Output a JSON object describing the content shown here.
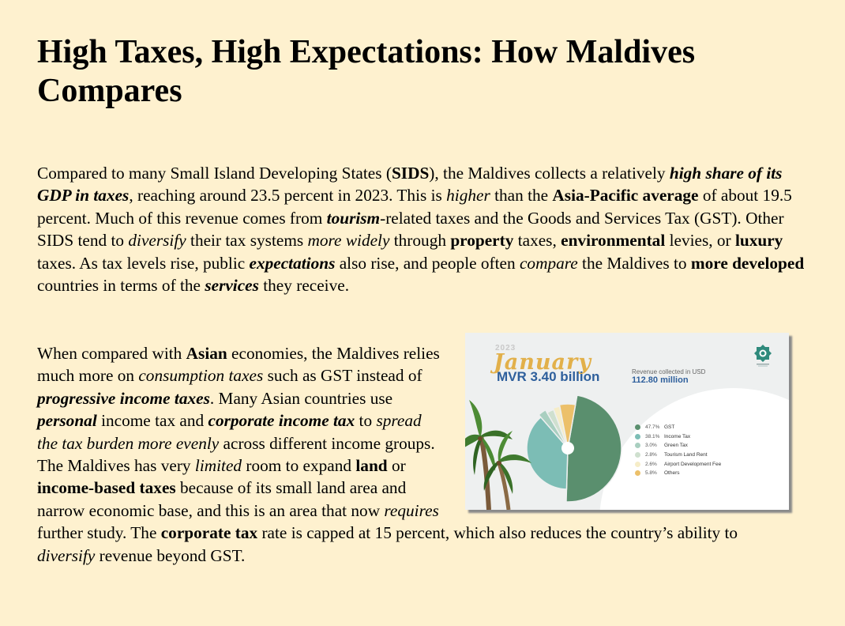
{
  "title": "High Taxes, High Expectations: How Maldives Compares",
  "p1": {
    "s1": "Compared to many Small Island Developing States (",
    "b1": "SIDS",
    "s2": "), the Maldives collects a relatively ",
    "bi1": "high share of its GDP in taxes",
    "s3": ", reaching around 23.5 percent in 2023. This is ",
    "i1": "higher",
    "s4": " than the ",
    "b2": "Asia-Pacific average",
    "s5": " of about 19.5 percent. Much of this revenue comes from ",
    "bi2": "tourism",
    "s6": "-related taxes and the Goods and Services Tax (GST). Other SIDS tend to ",
    "i2": "diversify",
    "s7": " their tax systems ",
    "i3": "more widely",
    "s8": " through ",
    "b3": "property",
    "s9": " taxes, ",
    "b4": "environmental",
    "s10": " levies, or ",
    "b5": "luxury",
    "s11": " taxes. As tax levels rise, public ",
    "bi3": "expectations",
    "s12": " also rise, and people often ",
    "i4": "compare",
    "s13": " the Maldives to ",
    "b6": "more developed",
    "s14": " countries in terms of the ",
    "bi4": "services",
    "s15": " they receive."
  },
  "p2": {
    "s1": "When compared with ",
    "b1": "Asian",
    "s2": " economies, the Maldives relies much more on ",
    "i1": "consumption taxes",
    "s3": " such as GST instead of ",
    "bi1": "progressive income taxes",
    "s4": ". Many Asian countries use ",
    "bi2": "personal",
    "s5": " income tax and ",
    "bi3": "corporate income tax",
    "s6": " to ",
    "i2": "spread the tax burden more evenly",
    "s7": " across different income groups. The Maldives has very ",
    "i3": "limited",
    "s8": " room to expand ",
    "b2": "land",
    "s9": " or ",
    "b3": "income-based taxes",
    "s10": " because of its small land area and narrow economic base, and this is an area that now ",
    "i4": "requires",
    "s11": " further study. The ",
    "b4": "corporate tax",
    "s12": " rate is capped at 15 percent, which also reduces the country’s ability to ",
    "i5": "diversify",
    "s13": " revenue beyond GST."
  },
  "infographic": {
    "year": "2023",
    "month": "January",
    "total_mvr": "MVR 3.40 billion",
    "revenue_label": "Revenue collected in USD",
    "revenue_usd": "112.80 million",
    "logo_icon": "mira-emblem-icon",
    "legend": [
      {
        "pct": "47.7%",
        "label": "GST",
        "value": 47.7,
        "color": "#5a8f6e"
      },
      {
        "pct": "38.1%",
        "label": "Income Tax",
        "value": 38.1,
        "color": "#7cbdb5"
      },
      {
        "pct": "3.0%",
        "label": "Green Tax",
        "value": 3.0,
        "color": "#a9cfc0"
      },
      {
        "pct": "2.8%",
        "label": "Tourism Land Rent",
        "value": 2.8,
        "color": "#cfe0cf"
      },
      {
        "pct": "2.6%",
        "label": "Airport Development Fee",
        "value": 2.6,
        "color": "#f6edc8"
      },
      {
        "pct": "5.8%",
        "label": "Others",
        "value": 5.8,
        "color": "#ecc06a"
      }
    ]
  }
}
